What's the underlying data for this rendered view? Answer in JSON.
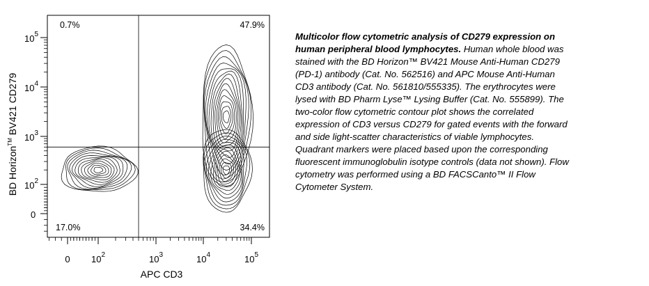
{
  "chart_data": {
    "type": "contour",
    "x_axis": {
      "label": "APC CD3",
      "scale": "biexponential-log",
      "tick_labels": [
        {
          "value": 0,
          "text": "0"
        },
        {
          "value": 100,
          "text": "10",
          "exp": "2"
        },
        {
          "value": 1000,
          "text": "10",
          "exp": "3"
        },
        {
          "value": 10000,
          "text": "10",
          "exp": "4"
        },
        {
          "value": 100000,
          "text": "10",
          "exp": "5"
        }
      ]
    },
    "y_axis": {
      "label_prefix": "BD Horizon",
      "label_tm": "TM",
      "label_suffix": " BV421 CD279",
      "scale": "biexponential-log",
      "tick_labels": [
        {
          "value": 0,
          "text": "0"
        },
        {
          "value": 100,
          "text": "10",
          "exp": "2"
        },
        {
          "value": 1000,
          "text": "10",
          "exp": "3"
        },
        {
          "value": 10000,
          "text": "10",
          "exp": "4"
        },
        {
          "value": 100000,
          "text": "10",
          "exp": "5"
        }
      ]
    },
    "quadrant_gates": {
      "x": 500,
      "y": 600
    },
    "quadrants": {
      "upper_left": "0.7%",
      "upper_right": "47.9%",
      "lower_left": "17.0%",
      "lower_right": "34.4%"
    },
    "populations": [
      {
        "x": 100,
        "y": 200
      },
      {
        "x": 30000,
        "y": 2500
      },
      {
        "x": 30000,
        "y": 200
      }
    ]
  },
  "caption": {
    "title": "Multicolor flow cytometric analysis of CD279 expression on human peripheral blood lymphocytes.",
    "body": " Human whole blood was stained with the BD Horizon™ BV421 Mouse Anti-Human CD279 (PD-1) antibody (Cat. No. 562516) and APC Mouse Anti-Human CD3 antibody (Cat. No. 561810/555335). The erythrocytes were lysed with BD Pharm Lyse™ Lysing Buffer (Cat. No. 555899). The two-color flow cytometric contour plot shows the correlated expression of CD3 versus CD279 for gated events with the forward and side light-scatter characteristics of viable lymphocytes. Quadrant markers were placed based upon the corresponding fluorescent immunoglobulin isotype controls (data not shown). Flow cytometry was performed using a BD FACSCanto™ II Flow Cytometer System."
  }
}
